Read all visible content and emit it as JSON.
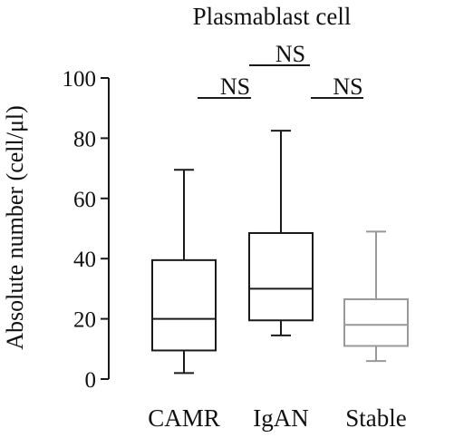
{
  "chart_data": {
    "type": "boxplot",
    "title": "Plasmablast cell",
    "ylabel": "Absolute number (cell/μl)",
    "xlabel": "",
    "ylim": [
      0,
      100
    ],
    "yticks": [
      0,
      20,
      40,
      60,
      80,
      100
    ],
    "grid": false,
    "categories": [
      "CAMR",
      "IgAN",
      "Stable"
    ],
    "boxes": [
      {
        "category": "CAMR",
        "min": 2,
        "q1": 9.5,
        "median": 20,
        "q3": 39.5,
        "max": 69.5,
        "color": "#1a1a1a"
      },
      {
        "category": "IgAN",
        "min": 14.5,
        "q1": 19.5,
        "median": 30,
        "q3": 48.5,
        "max": 82.5,
        "color": "#1a1a1a"
      },
      {
        "category": "Stable",
        "min": 6,
        "q1": 11,
        "median": 18,
        "q3": 26.5,
        "max": 49,
        "color": "#999999"
      }
    ],
    "comparisons": [
      {
        "groups": [
          "CAMR",
          "IgAN"
        ],
        "label": "NS"
      },
      {
        "groups": [
          "IgAN",
          "Stable"
        ],
        "label": "NS"
      },
      {
        "groups": [
          "CAMR",
          "Stable"
        ],
        "label": "NS"
      }
    ]
  }
}
